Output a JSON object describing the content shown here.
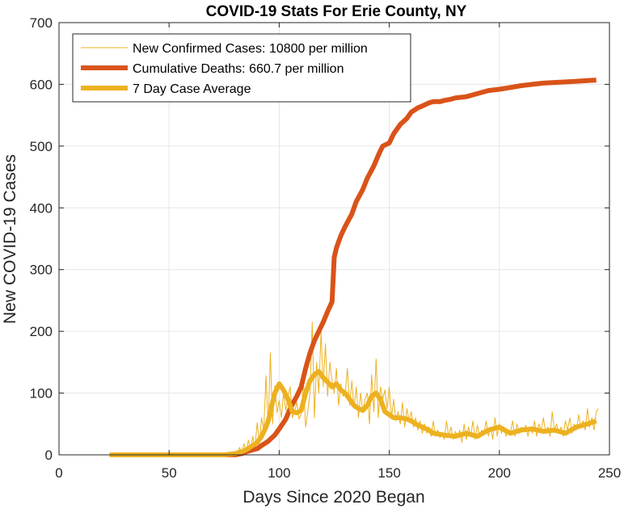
{
  "chart_data": {
    "type": "line",
    "title": "COVID-19 Stats For Erie County, NY",
    "xlabel": "Days Since 2020 Began",
    "ylabel": "New COVID-19 Cases",
    "xlim": [
      0,
      250
    ],
    "ylim": [
      0,
      700
    ],
    "xticks": [
      "0",
      "50",
      "100",
      "150",
      "200",
      "250"
    ],
    "yticks": [
      "0",
      "100",
      "200",
      "300",
      "400",
      "500",
      "600",
      "700"
    ],
    "grid": true,
    "legend_position": "top-left",
    "series": [
      {
        "name": "New Confirmed Cases: 10800 per million",
        "color": "#EDB120",
        "style": "thin",
        "x": [
          23,
          30,
          40,
          50,
          60,
          70,
          75,
          78,
          80,
          81,
          82,
          83,
          84,
          85,
          86,
          87,
          88,
          89,
          90,
          91,
          92,
          93,
          94,
          95,
          96,
          97,
          98,
          99,
          100,
          101,
          102,
          103,
          104,
          105,
          106,
          107,
          108,
          109,
          110,
          111,
          112,
          113,
          114,
          115,
          116,
          117,
          118,
          119,
          120,
          121,
          122,
          123,
          124,
          125,
          126,
          127,
          128,
          129,
          130,
          131,
          132,
          133,
          134,
          135,
          136,
          137,
          138,
          139,
          140,
          141,
          142,
          143,
          144,
          145,
          146,
          147,
          148,
          149,
          150,
          151,
          152,
          153,
          154,
          155,
          156,
          157,
          158,
          159,
          160,
          161,
          162,
          163,
          164,
          165,
          166,
          167,
          168,
          169,
          170,
          171,
          172,
          173,
          174,
          175,
          176,
          177,
          178,
          179,
          180,
          181,
          182,
          183,
          184,
          185,
          186,
          187,
          188,
          189,
          190,
          191,
          192,
          193,
          194,
          195,
          196,
          197,
          198,
          199,
          200,
          201,
          202,
          203,
          204,
          205,
          206,
          207,
          208,
          209,
          210,
          211,
          212,
          213,
          214,
          215,
          216,
          217,
          218,
          219,
          220,
          221,
          222,
          223,
          224,
          225,
          226,
          227,
          228,
          229,
          230,
          231,
          232,
          233,
          234,
          235,
          236,
          237,
          238,
          239,
          240,
          241,
          242,
          243,
          244,
          245
        ],
        "values": [
          0,
          0,
          0,
          0,
          0,
          0,
          0,
          1,
          4,
          0,
          12,
          2,
          18,
          5,
          24,
          8,
          30,
          12,
          52,
          18,
          60,
          40,
          128,
          45,
          165,
          50,
          112,
          68,
          88,
          60,
          100,
          72,
          95,
          110,
          60,
          70,
          85,
          58,
          65,
          120,
          45,
          70,
          100,
          215,
          60,
          150,
          100,
          200,
          110,
          180,
          95,
          150,
          120,
          100,
          140,
          80,
          115,
          95,
          100,
          140,
          80,
          120,
          75,
          110,
          60,
          100,
          70,
          90,
          100,
          50,
          130,
          70,
          155,
          60,
          110,
          90,
          105,
          75,
          110,
          60,
          90,
          55,
          70,
          50,
          85,
          45,
          75,
          55,
          70,
          45,
          60,
          40,
          55,
          35,
          50,
          35,
          45,
          30,
          55,
          30,
          40,
          28,
          35,
          25,
          55,
          30,
          45,
          25,
          38,
          30,
          40,
          20,
          50,
          25,
          45,
          30,
          55,
          25,
          48,
          30,
          40,
          35,
          55,
          30,
          45,
          25,
          60,
          30,
          50,
          35,
          45,
          30,
          40,
          35,
          55,
          30,
          50,
          35,
          45,
          38,
          48,
          30,
          45,
          35,
          55,
          30,
          50,
          40,
          60,
          35,
          45,
          30,
          70,
          40,
          50,
          35,
          45,
          30,
          55,
          40,
          60,
          35,
          50,
          40,
          65,
          45,
          55,
          40,
          75,
          45,
          60,
          40,
          70,
          75
        ]
      },
      {
        "name": "Cumulative Deaths: 660.7 per million",
        "color": "#D95319",
        "style": "thick",
        "x": [
          23,
          50,
          80,
          83,
          85,
          88,
          90,
          92,
          95,
          98,
          100,
          103,
          105,
          108,
          110,
          112,
          114,
          116,
          118,
          120,
          122,
          124,
          125,
          126,
          127,
          128,
          130,
          133,
          135,
          138,
          140,
          143,
          145,
          147,
          150,
          152,
          155,
          158,
          160,
          163,
          165,
          168,
          170,
          173,
          175,
          178,
          180,
          185,
          190,
          195,
          200,
          205,
          210,
          215,
          220,
          225,
          230,
          235,
          240,
          244
        ],
        "values": [
          0,
          0,
          0,
          2,
          5,
          8,
          10,
          15,
          22,
          32,
          42,
          58,
          75,
          95,
          110,
          140,
          165,
          185,
          200,
          215,
          232,
          248,
          320,
          335,
          345,
          355,
          370,
          390,
          410,
          430,
          448,
          468,
          485,
          500,
          505,
          520,
          535,
          545,
          555,
          562,
          565,
          570,
          572,
          572,
          574,
          576,
          578,
          580,
          585,
          590,
          592,
          595,
          598,
          600,
          602,
          603,
          604,
          605,
          606,
          607
        ]
      },
      {
        "name": "7 Day Case Average",
        "color": "#EDB120",
        "style": "thick",
        "x": [
          23,
          50,
          75,
          80,
          83,
          85,
          88,
          90,
          92,
          94,
          95,
          96,
          97,
          98,
          100,
          102,
          104,
          106,
          108,
          110,
          112,
          114,
          116,
          118,
          120,
          122,
          124,
          126,
          128,
          130,
          132,
          134,
          136,
          138,
          140,
          142,
          144,
          146,
          148,
          150,
          152,
          155,
          158,
          160,
          162,
          165,
          168,
          170,
          175,
          180,
          185,
          190,
          195,
          200,
          205,
          210,
          215,
          220,
          225,
          230,
          235,
          240,
          244
        ],
        "values": [
          0,
          0,
          0,
          2,
          5,
          8,
          15,
          20,
          30,
          45,
          55,
          70,
          85,
          100,
          115,
          105,
          90,
          70,
          68,
          72,
          100,
          120,
          130,
          135,
          125,
          118,
          110,
          115,
          105,
          100,
          90,
          80,
          75,
          72,
          80,
          95,
          100,
          90,
          70,
          65,
          60,
          60,
          58,
          55,
          50,
          45,
          40,
          35,
          32,
          30,
          35,
          30,
          40,
          45,
          35,
          40,
          42,
          38,
          40,
          35,
          45,
          50,
          55
        ]
      }
    ]
  }
}
